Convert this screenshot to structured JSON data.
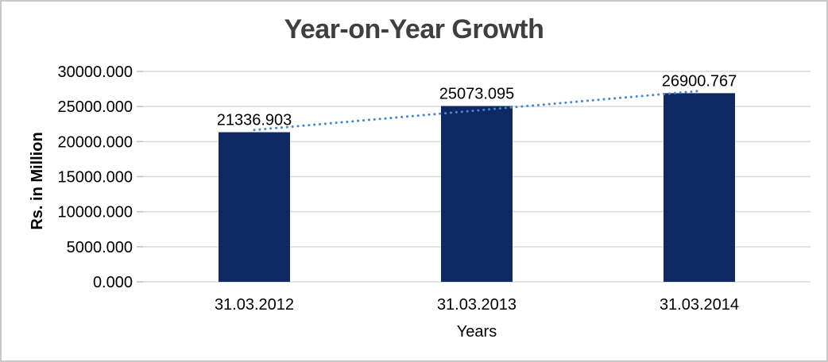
{
  "chart_data": {
    "type": "bar",
    "title": "Year-on-Year Growth",
    "xlabel": "Years",
    "ylabel": "Rs. in Million",
    "categories": [
      "31.03.2012",
      "31.03.2013",
      "31.03.2014"
    ],
    "values": [
      21336.903,
      25073.095,
      26900.767
    ],
    "value_labels": [
      "21336.903",
      "25073.095",
      "26900.767"
    ],
    "ylim": [
      0,
      30000
    ],
    "ytick_step": 5000,
    "ytick_labels": [
      "0.000",
      "5000.000",
      "10000.000",
      "15000.000",
      "20000.000",
      "25000.000",
      "30000.000"
    ],
    "grid": true,
    "legend_position": "none",
    "trendline": {
      "type": "linear",
      "style": "dotted"
    },
    "colors": {
      "bar": "#0e2864",
      "trendline": "#4a87c9",
      "gridline": "#d9d9d9",
      "tick": "#bfbfbf",
      "title": "#3f3f3f",
      "text": "#000000",
      "border": "#c8c8c8",
      "background": "#ffffff"
    }
  }
}
